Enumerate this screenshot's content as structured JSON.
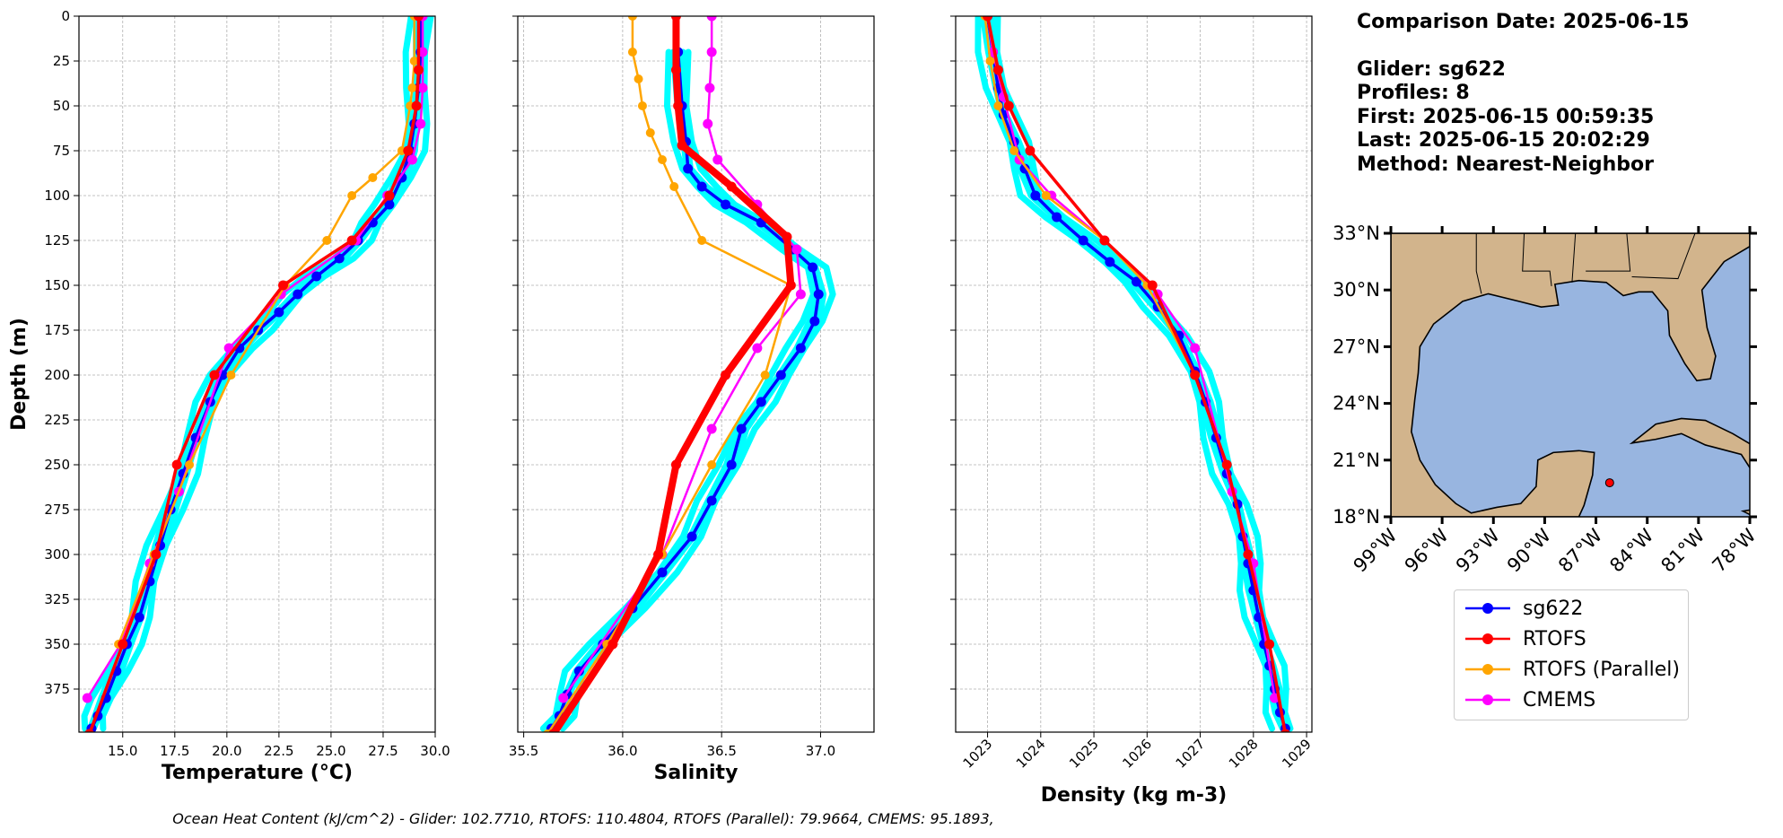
{
  "info": {
    "comparison_date": "Comparison Date: 2025-06-15",
    "glider": "Glider: sg622",
    "profiles": "Profiles: 8",
    "first": "First: 2025-06-15 00:59:35",
    "last": "Last: 2025-06-15 20:02:29",
    "method": "Method: Nearest-Neighbor"
  },
  "footer": "Ocean Heat Content (kJ/cm^2) - Glider: 102.7710,  RTOFS: 110.4804,  RTOFS (Parallel): 79.9664,  CMEMS: 95.1893,",
  "legend": [
    {
      "name": "sg622",
      "color": "#0000ff"
    },
    {
      "name": "RTOFS",
      "color": "#ff0000"
    },
    {
      "name": "RTOFS (Parallel)",
      "color": "#ffa500"
    },
    {
      "name": "CMEMS",
      "color": "#ff00ff"
    }
  ],
  "chart_data": [
    {
      "type": "line",
      "xlabel": "Temperature (°C)",
      "ylabel": "Depth (m)",
      "xlim": [
        12.9,
        30.0
      ],
      "ylim": [
        399,
        0
      ],
      "xticks": [
        "15.0",
        "17.5",
        "20.0",
        "22.5",
        "25.0",
        "27.5",
        "30.0"
      ],
      "yticks": [
        "0",
        "25",
        "50",
        "75",
        "100",
        "125",
        "150",
        "175",
        "200",
        "225",
        "250",
        "275",
        "300",
        "325",
        "350",
        "375"
      ],
      "grid": true,
      "series": [
        {
          "name": "sg622",
          "color": "#0000ff",
          "x": [
            29.3,
            29.3,
            29.2,
            29.0,
            28.8,
            28.4,
            27.8,
            27.0,
            26.3,
            25.4,
            24.3,
            23.4,
            22.5,
            21.5,
            20.6,
            19.8,
            19.2,
            18.5,
            17.9,
            17.3,
            16.8,
            16.3,
            15.8,
            15.2,
            14.7,
            14.2,
            13.8,
            13.5
          ],
          "y": [
            0,
            20,
            40,
            60,
            75,
            90,
            105,
            115,
            125,
            135,
            145,
            155,
            165,
            175,
            185,
            200,
            215,
            235,
            255,
            275,
            295,
            315,
            335,
            350,
            365,
            380,
            390,
            397
          ]
        },
        {
          "name": "RTOFS",
          "color": "#ff0000",
          "x": [
            29.2,
            29.2,
            29.1,
            28.7,
            27.8,
            26.0,
            22.7,
            19.4,
            17.6,
            16.6,
            15.0,
            13.4
          ],
          "y": [
            0,
            30,
            50,
            75,
            100,
            125,
            150,
            200,
            250,
            300,
            350,
            400
          ]
        },
        {
          "name": "RTOFS (Parallel)",
          "color": "#ffa500",
          "x": [
            29.0,
            29.0,
            28.9,
            28.8,
            28.4,
            27.0,
            26.0,
            24.8,
            22.8,
            20.2,
            18.2,
            16.5,
            14.8
          ],
          "y": [
            0,
            25,
            40,
            50,
            75,
            90,
            100,
            125,
            150,
            200,
            250,
            300,
            350
          ]
        },
        {
          "name": "CMEMS",
          "color": "#ff00ff",
          "x": [
            29.4,
            29.4,
            29.4,
            29.3,
            28.9,
            27.7,
            26.2,
            22.6,
            20.1,
            17.7,
            16.3,
            14.9,
            13.3
          ],
          "y": [
            0,
            20,
            40,
            60,
            80,
            100,
            125,
            155,
            185,
            265,
            305,
            350,
            380
          ]
        }
      ]
    },
    {
      "type": "line",
      "xlabel": "Salinity",
      "xlim": [
        35.47,
        37.27
      ],
      "ylim": [
        399,
        0
      ],
      "xticks": [
        "35.5",
        "36.0",
        "36.5",
        "37.0"
      ],
      "grid": true,
      "series": [
        {
          "name": "sg622",
          "color": "#0000ff",
          "x": [
            36.28,
            36.3,
            36.32,
            36.33,
            36.4,
            36.52,
            36.7,
            36.86,
            36.96,
            36.99,
            36.97,
            36.9,
            36.8,
            36.7,
            36.6,
            36.55,
            36.45,
            36.35,
            36.2,
            36.05,
            35.9,
            35.78,
            35.72,
            35.68,
            35.64
          ],
          "y": [
            20,
            50,
            70,
            85,
            95,
            105,
            115,
            130,
            140,
            155,
            170,
            185,
            200,
            215,
            230,
            250,
            270,
            290,
            310,
            330,
            350,
            365,
            378,
            390,
            397
          ]
        },
        {
          "name": "RTOFS",
          "color": "#ff0000",
          "x": [
            36.27,
            36.27,
            36.28,
            36.3,
            36.55,
            36.83,
            36.85,
            36.52,
            36.27,
            36.18,
            35.95,
            35.65
          ],
          "y": [
            0,
            30,
            50,
            72,
            95,
            123,
            150,
            200,
            250,
            300,
            350,
            400
          ]
        },
        {
          "name": "RTOFS (Parallel)",
          "color": "#ffa500",
          "x": [
            36.05,
            36.05,
            36.08,
            36.1,
            36.14,
            36.2,
            36.26,
            36.4,
            36.85,
            36.72,
            36.45,
            36.2,
            35.92,
            35.62
          ],
          "y": [
            0,
            20,
            35,
            50,
            65,
            80,
            95,
            125,
            150,
            200,
            250,
            300,
            350,
            400
          ]
        },
        {
          "name": "CMEMS",
          "color": "#ff00ff",
          "x": [
            36.45,
            36.45,
            36.44,
            36.43,
            36.48,
            36.68,
            36.88,
            36.9,
            36.68,
            36.45,
            36.2,
            35.7
          ],
          "y": [
            0,
            20,
            40,
            60,
            80,
            105,
            130,
            155,
            185,
            230,
            300,
            380
          ]
        }
      ]
    },
    {
      "type": "line",
      "xlabel": "Density (kg m-3)",
      "xlim": [
        1022.4,
        1029.1
      ],
      "ylim": [
        399,
        0
      ],
      "xticks": [
        "1023",
        "1024",
        "1025",
        "1026",
        "1027",
        "1028",
        "1029"
      ],
      "grid": true,
      "series": [
        {
          "name": "sg622",
          "color": "#0000ff",
          "x": [
            1023.0,
            1023.1,
            1023.2,
            1023.3,
            1023.5,
            1023.7,
            1023.9,
            1024.3,
            1024.8,
            1025.3,
            1025.8,
            1026.2,
            1026.6,
            1026.9,
            1027.1,
            1027.3,
            1027.5,
            1027.7,
            1027.8,
            1027.9,
            1028.0,
            1028.1,
            1028.2,
            1028.3,
            1028.4,
            1028.5,
            1028.6
          ],
          "y": [
            0,
            20,
            40,
            55,
            70,
            85,
            100,
            112,
            125,
            137,
            148,
            162,
            178,
            198,
            215,
            235,
            255,
            272,
            290,
            305,
            320,
            335,
            350,
            362,
            375,
            388,
            397
          ]
        },
        {
          "name": "RTOFS",
          "color": "#ff0000",
          "x": [
            1023.0,
            1023.2,
            1023.4,
            1023.8,
            1025.2,
            1026.1,
            1026.9,
            1027.5,
            1027.9,
            1028.3,
            1028.6
          ],
          "y": [
            0,
            30,
            50,
            75,
            125,
            150,
            200,
            250,
            300,
            350,
            400
          ]
        },
        {
          "name": "RTOFS (Parallel)",
          "color": "#ffa500",
          "x": [
            1022.95,
            1023.05,
            1023.2,
            1023.5,
            1024.1,
            1025.2,
            1026.0,
            1026.9,
            1027.5,
            1027.9,
            1028.3
          ],
          "y": [
            0,
            25,
            50,
            75,
            100,
            125,
            150,
            200,
            250,
            300,
            350
          ]
        },
        {
          "name": "CMEMS",
          "color": "#ff00ff",
          "x": [
            1023.0,
            1023.1,
            1023.3,
            1023.6,
            1024.2,
            1025.2,
            1026.2,
            1026.9,
            1027.6,
            1028.0,
            1028.4
          ],
          "y": [
            0,
            20,
            45,
            80,
            100,
            125,
            155,
            185,
            265,
            305,
            380
          ]
        }
      ]
    }
  ],
  "map": {
    "lat_ticks": [
      "33°N",
      "30°N",
      "27°N",
      "24°N",
      "21°N",
      "18°N"
    ],
    "lon_ticks": [
      "99°W",
      "96°W",
      "93°W",
      "90°W",
      "87°W",
      "84°W",
      "81°W",
      "78°W"
    ],
    "land_color": "#d2b48c",
    "ocean_color": "#98b5e0",
    "glider_marker": {
      "lon": -86.2,
      "lat": 19.8,
      "color": "#ff0000"
    }
  }
}
